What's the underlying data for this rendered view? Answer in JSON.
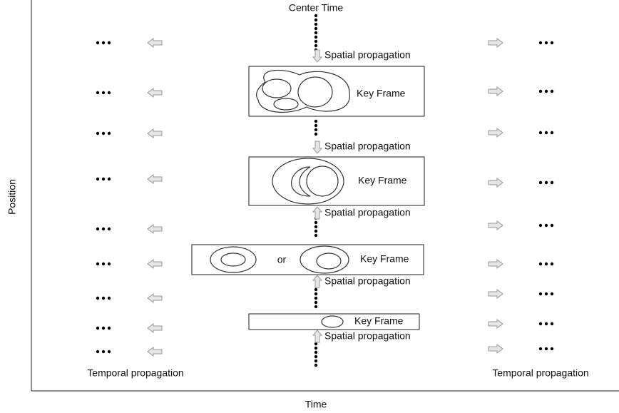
{
  "title": "Center Time",
  "axes": {
    "x_label": "Time",
    "y_label": "Position"
  },
  "temporal_labels": [
    "Temporal propagation",
    "Temporal propagation"
  ],
  "spatial_labels": [
    "Spatial propagation",
    "Spatial propagation",
    "Spatial propagation",
    "Spatial propagation",
    "Spatial propagation"
  ],
  "key_frames": [
    "Key Frame",
    "Key Frame",
    "Key Frame",
    "Key Frame"
  ],
  "or_label": "or"
}
